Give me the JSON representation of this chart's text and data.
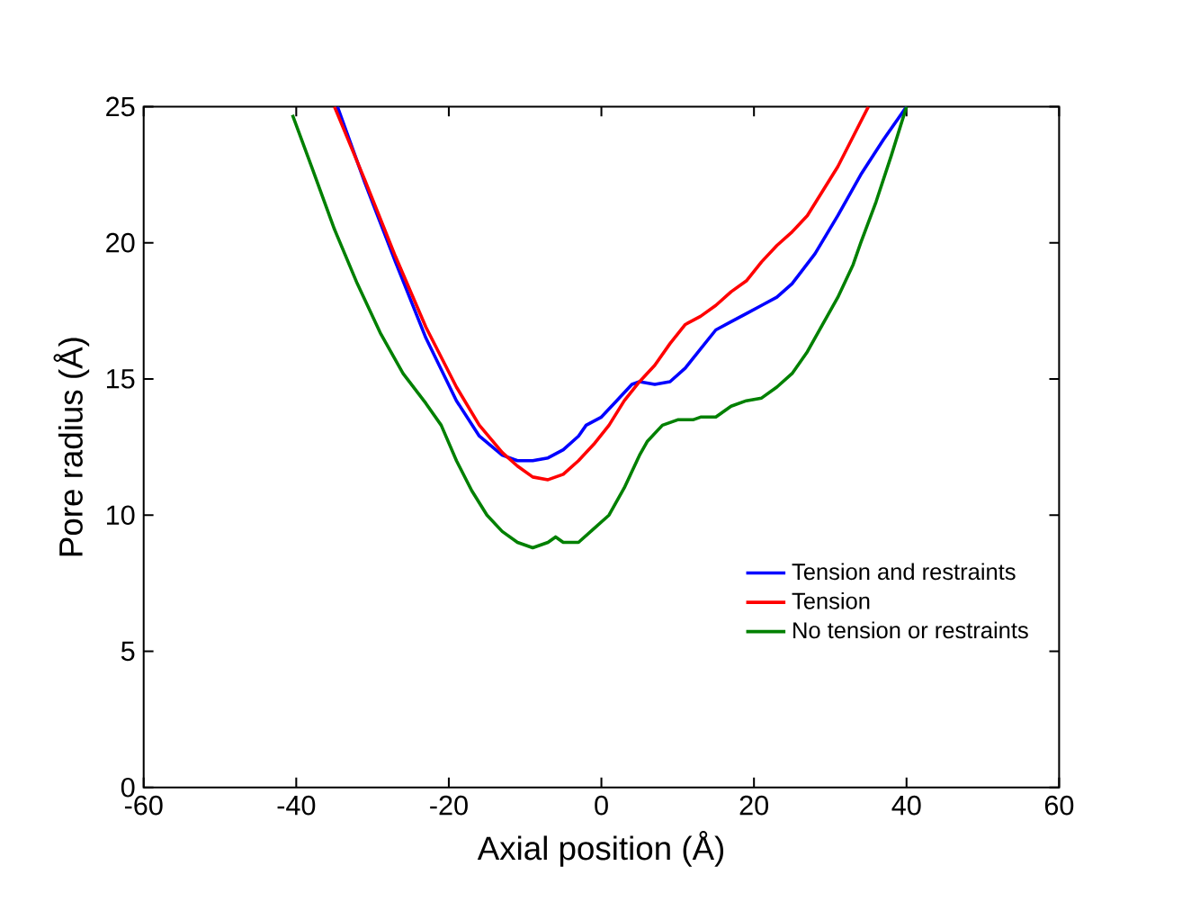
{
  "chart_data": {
    "type": "line",
    "xlabel": "Axial position (Å)",
    "ylabel": "Pore radius (Å)",
    "xlim": [
      -60,
      60
    ],
    "ylim": [
      0,
      25
    ],
    "xticks": [
      -60,
      -40,
      -20,
      0,
      20,
      40,
      60
    ],
    "yticks": [
      0,
      5,
      10,
      15,
      20,
      25
    ],
    "legend": "bottom right",
    "grid": false,
    "marker": "none",
    "line_style": "solid",
    "series": [
      {
        "name": "Tension and restraints",
        "color": "#0000ff",
        "x": [
          -34.6,
          -31,
          -27,
          -23,
          -19,
          -16,
          -13,
          -11,
          -9,
          -7,
          -5,
          -3,
          -2,
          0,
          2,
          4,
          5,
          7,
          9,
          11,
          13,
          15,
          17,
          19,
          21,
          23,
          25,
          28,
          31,
          34,
          37,
          40
        ],
        "values": [
          25,
          22.2,
          19.3,
          16.5,
          14.2,
          12.9,
          12.2,
          12.0,
          12.0,
          12.1,
          12.4,
          12.9,
          13.3,
          13.6,
          14.2,
          14.8,
          14.9,
          14.8,
          14.9,
          15.4,
          16.1,
          16.8,
          17.1,
          17.4,
          17.7,
          18.0,
          18.5,
          19.6,
          21.0,
          22.5,
          23.8,
          25
        ]
      },
      {
        "name": "Tension",
        "color": "#ff0000",
        "x": [
          -35,
          -31,
          -27,
          -23,
          -19,
          -16,
          -13,
          -11,
          -9,
          -7,
          -5,
          -3,
          -1,
          1,
          3,
          5,
          7,
          9,
          11,
          13,
          15,
          17,
          19,
          21,
          23,
          25,
          27,
          29,
          31,
          33,
          35
        ],
        "values": [
          25,
          22.3,
          19.5,
          16.9,
          14.7,
          13.3,
          12.3,
          11.8,
          11.4,
          11.3,
          11.5,
          12.0,
          12.6,
          13.3,
          14.2,
          14.9,
          15.5,
          16.3,
          17.0,
          17.3,
          17.7,
          18.2,
          18.6,
          19.3,
          19.9,
          20.4,
          21.0,
          21.9,
          22.8,
          23.9,
          25
        ]
      },
      {
        "name": "No tension or restraints",
        "color": "#008000",
        "x": [
          -40.5,
          -38,
          -35,
          -32,
          -29,
          -26,
          -23,
          -21,
          -19,
          -17,
          -15,
          -13,
          -11,
          -9,
          -7,
          -6,
          -5,
          -3,
          -1,
          1,
          3,
          5,
          6,
          8,
          10,
          12,
          13,
          15,
          17,
          19,
          21,
          23,
          25,
          27,
          29,
          31,
          33,
          34,
          36,
          38,
          40
        ],
        "values": [
          24.7,
          22.8,
          20.5,
          18.5,
          16.7,
          15.2,
          14.1,
          13.3,
          12.0,
          10.9,
          10.0,
          9.4,
          9.0,
          8.8,
          9.0,
          9.2,
          9.0,
          9.0,
          9.5,
          10.0,
          11.0,
          12.2,
          12.7,
          13.3,
          13.5,
          13.5,
          13.6,
          13.6,
          14.0,
          14.2,
          14.3,
          14.7,
          15.2,
          16.0,
          17.0,
          18.0,
          19.2,
          20.0,
          21.5,
          23.2,
          25
        ]
      }
    ]
  }
}
